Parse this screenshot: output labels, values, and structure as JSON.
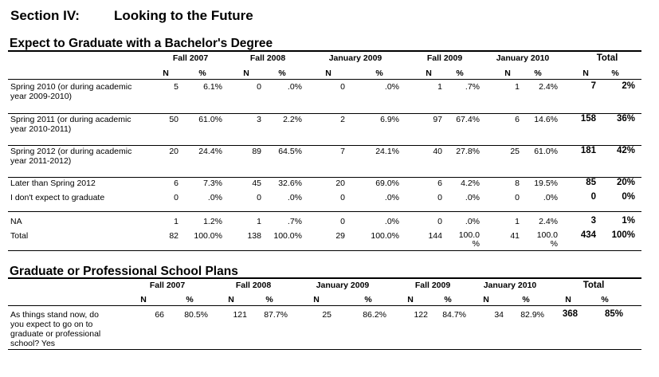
{
  "section": {
    "label": "Section IV:",
    "title": "Looking to the Future"
  },
  "table1": {
    "title": "Expect to Graduate with a Bachelor's Degree",
    "groups": [
      "Fall 2007",
      "Fall 2008",
      "January 2009",
      "Fall 2009",
      "January 2010",
      "Total"
    ],
    "subheaders": [
      "N",
      "%",
      "N",
      "%",
      "N",
      "%",
      "N",
      "%",
      "N",
      "%",
      "N",
      "%"
    ],
    "rows": [
      {
        "label": "Spring 2010 (or during academic year 2009-2010)",
        "values": [
          "5",
          "6.1%",
          "0",
          ".0%",
          "0",
          ".0%",
          "1",
          ".7%",
          "1",
          "2.4%",
          "7",
          "2%"
        ]
      },
      {
        "label": "Spring 2011 (or during academic year 2010-2011)",
        "values": [
          "50",
          "61.0%",
          "3",
          "2.2%",
          "2",
          "6.9%",
          "97",
          "67.4%",
          "6",
          "14.6%",
          "158",
          "36%"
        ]
      },
      {
        "label": "Spring 2012 (or during academic year 2011-2012)",
        "values": [
          "20",
          "24.4%",
          "89",
          "64.5%",
          "7",
          "24.1%",
          "40",
          "27.8%",
          "25",
          "61.0%",
          "181",
          "42%"
        ]
      },
      {
        "label": "Later than Spring 2012",
        "values": [
          "6",
          "7.3%",
          "45",
          "32.6%",
          "20",
          "69.0%",
          "6",
          "4.2%",
          "8",
          "19.5%",
          "85",
          "20%"
        ]
      },
      {
        "label": "I don't expect to graduate",
        "values": [
          "0",
          ".0%",
          "0",
          ".0%",
          "0",
          ".0%",
          "0",
          ".0%",
          "0",
          ".0%",
          "0",
          "0%"
        ]
      },
      {
        "label": "NA",
        "values": [
          "1",
          "1.2%",
          "1",
          ".7%",
          "0",
          ".0%",
          "0",
          ".0%",
          "1",
          "2.4%",
          "3",
          "1%"
        ]
      },
      {
        "label": "Total",
        "values": [
          "82",
          "100.0%",
          "138",
          "100.0%",
          "29",
          "100.0%",
          "144",
          "100.0 %",
          "41",
          "100.0 %",
          "434",
          "100%"
        ]
      }
    ]
  },
  "table2": {
    "title": "Graduate or Professional School Plans",
    "groups": [
      "Fall 2007",
      "Fall 2008",
      "January 2009",
      "Fall 2009",
      "January 2010",
      "Total"
    ],
    "subheaders": [
      "N",
      "%",
      "N",
      "%",
      "N",
      "%",
      "N",
      "%",
      "N",
      "%",
      "N",
      "%"
    ],
    "rows": [
      {
        "label": "As things stand now, do you expect to go on to graduate or professional school? Yes",
        "values": [
          "66",
          "80.5%",
          "121",
          "87.7%",
          "25",
          "86.2%",
          "122",
          "84.7%",
          "34",
          "82.9%",
          "368",
          "85%"
        ]
      }
    ]
  }
}
